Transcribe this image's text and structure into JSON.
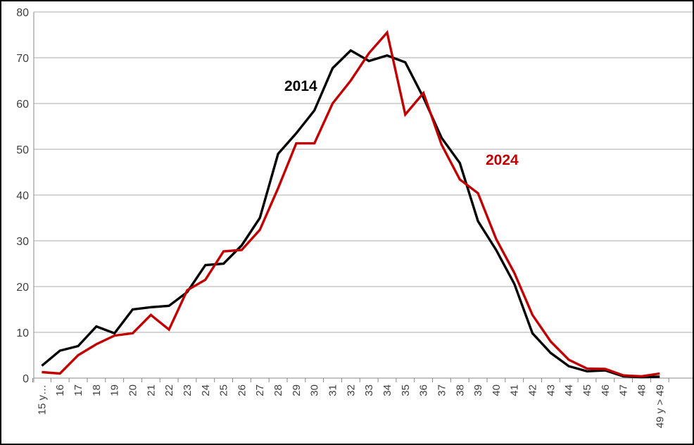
{
  "chart_data": {
    "type": "line",
    "title": "",
    "xlabel": "",
    "ylabel": "",
    "ylim": [
      0,
      80
    ],
    "yticks": [
      0,
      10,
      20,
      30,
      40,
      50,
      60,
      70,
      80
    ],
    "grid": "horizontal",
    "legend_position": "inline-annotations",
    "grid_color": "#ABABAB",
    "axis_color": "#898989",
    "label_color": "#3F3F3F",
    "border_color": "#000000",
    "background_color": "#FFFFFF",
    "categories": [
      "15 y…",
      "16",
      "17",
      "18",
      "19",
      "20",
      "21",
      "22",
      "23",
      "24",
      "25",
      "26",
      "27",
      "28",
      "29",
      "30",
      "31",
      "32",
      "33",
      "34",
      "35",
      "36",
      "37",
      "38",
      "39",
      "40",
      "41",
      "42",
      "43",
      "44",
      "45",
      "46",
      "47",
      "48",
      "49 y > 49"
    ],
    "series": [
      {
        "name": "2014",
        "color": "#000000",
        "values": [
          2.7,
          6,
          7,
          11.3,
          9.8,
          15,
          15.5,
          15.8,
          18.8,
          24.7,
          25,
          29,
          35,
          49,
          53.5,
          58.5,
          67.7,
          71.6,
          69.3,
          70.5,
          69,
          61.3,
          52.5,
          47,
          34.3,
          28,
          20.6,
          9.8,
          5.5,
          2.6,
          1.5,
          1.7,
          0.4,
          0.2,
          0.3
        ]
      },
      {
        "name": "2024",
        "color": "#C00000",
        "values": [
          1.3,
          1,
          5,
          7.4,
          9.3,
          9.8,
          13.8,
          10.6,
          19.2,
          21.5,
          27.7,
          28,
          32.4,
          41.5,
          51.3,
          51.3,
          60,
          65,
          71,
          75.5,
          57.6,
          62.3,
          51,
          43.4,
          40.4,
          30.4,
          23,
          13.8,
          8,
          4,
          2.1,
          2,
          0.6,
          0.4,
          1
        ]
      }
    ]
  }
}
